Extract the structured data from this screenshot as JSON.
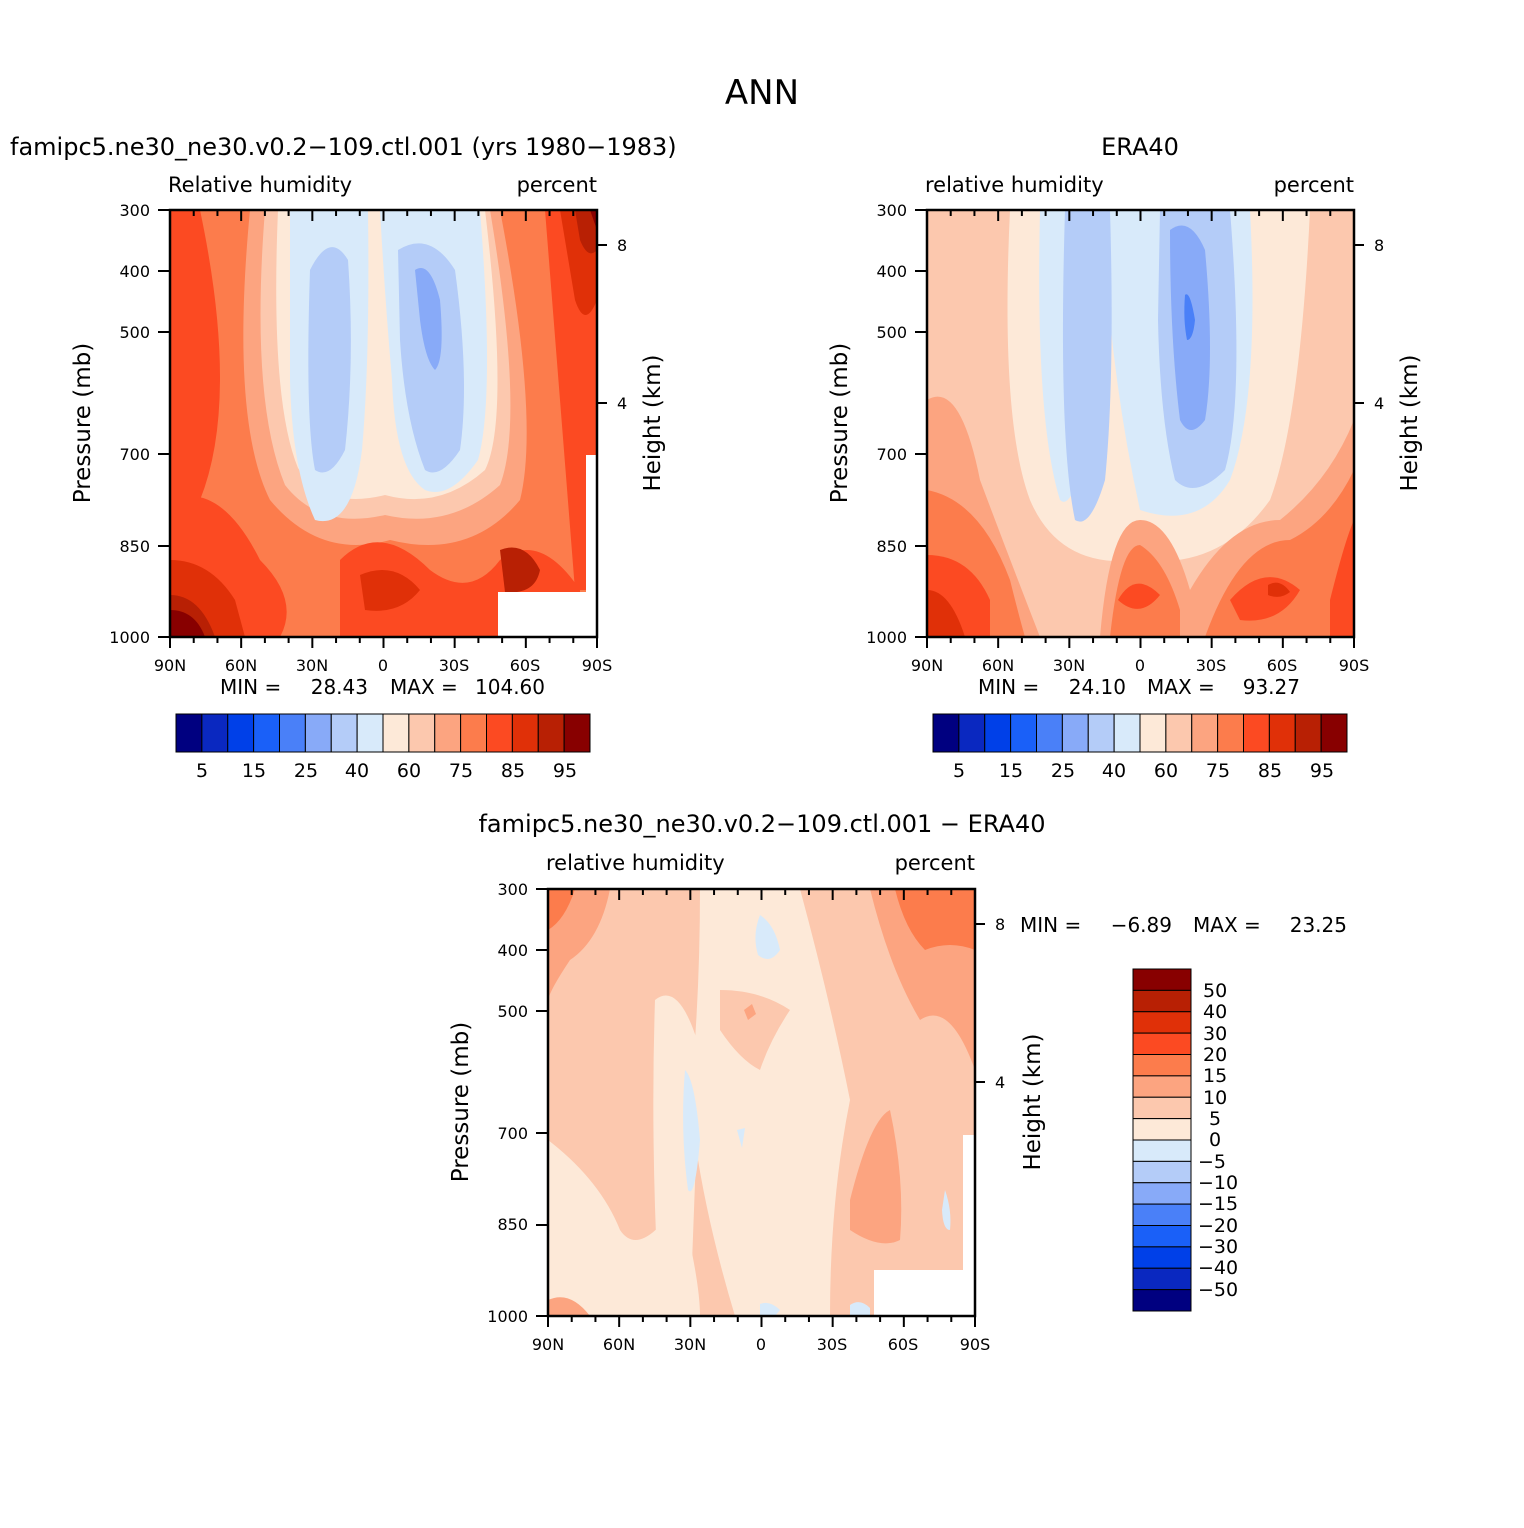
{
  "page": {
    "main_title": "ANN"
  },
  "chart_data": [
    {
      "type": "heatmap",
      "id": "p1",
      "title": "famipc5.ne30_ne30.v0.2−109.ctl.001 (yrs 1980−1983)",
      "left_label": "Relative humidity",
      "right_label": "percent",
      "xlabel": "",
      "ylabel": "Pressure (mb)",
      "y2label": "Height (km)",
      "x_ticks": [
        "90N",
        "60N",
        "30N",
        "0",
        "30S",
        "60S",
        "90S"
      ],
      "y_ticks": [
        "300",
        "400",
        "500",
        "700",
        "850",
        "1000"
      ],
      "y_tick_values": [
        300,
        400,
        500,
        700,
        850,
        1000
      ],
      "y2_ticks": [
        "8",
        "4"
      ],
      "ylim": [
        1000,
        300
      ],
      "min_label": "MIN =",
      "min_value": "28.43",
      "max_label": "MAX =",
      "max_value": "104.60",
      "colorbar_labels": [
        "5",
        "15",
        "25",
        "40",
        "60",
        "75",
        "85",
        "95"
      ],
      "colorbar_levels": [
        5,
        10,
        15,
        20,
        25,
        30,
        40,
        50,
        60,
        70,
        75,
        80,
        85,
        90,
        95
      ],
      "colors": [
        "#000080",
        "#0a28c0",
        "#0040e8",
        "#1a60f8",
        "#4a80f8",
        "#88aaf8",
        "#b4ccf8",
        "#d8eafa",
        "#fde9d8",
        "#fcc8ae",
        "#fca480",
        "#fc7c4c",
        "#fc4a22",
        "#e03008",
        "#b82004",
        "#880000"
      ]
    },
    {
      "type": "heatmap",
      "id": "p2",
      "title": "ERA40",
      "left_label": "relative humidity",
      "right_label": "percent",
      "xlabel": "",
      "ylabel": "Pressure (mb)",
      "y2label": "Height (km)",
      "x_ticks": [
        "90N",
        "60N",
        "30N",
        "0",
        "30S",
        "60S",
        "90S"
      ],
      "y_ticks": [
        "300",
        "400",
        "500",
        "700",
        "850",
        "1000"
      ],
      "y_tick_values": [
        300,
        400,
        500,
        700,
        850,
        1000
      ],
      "y2_ticks": [
        "8",
        "4"
      ],
      "ylim": [
        1000,
        300
      ],
      "min_label": "MIN =",
      "min_value": "24.10",
      "max_label": "MAX =",
      "max_value": "93.27",
      "colorbar_labels": [
        "5",
        "15",
        "25",
        "40",
        "60",
        "75",
        "85",
        "95"
      ],
      "colorbar_levels": [
        5,
        10,
        15,
        20,
        25,
        30,
        40,
        50,
        60,
        70,
        75,
        80,
        85,
        90,
        95
      ],
      "colors": [
        "#000080",
        "#0a28c0",
        "#0040e8",
        "#1a60f8",
        "#4a80f8",
        "#88aaf8",
        "#b4ccf8",
        "#d8eafa",
        "#fde9d8",
        "#fcc8ae",
        "#fca480",
        "#fc7c4c",
        "#fc4a22",
        "#e03008",
        "#b82004",
        "#880000"
      ]
    },
    {
      "type": "heatmap",
      "id": "p3",
      "title": "famipc5.ne30_ne30.v0.2−109.ctl.001 − ERA40",
      "left_label": "relative humidity",
      "right_label": "percent",
      "xlabel": "",
      "ylabel": "Pressure (mb)",
      "y2label": "Height (km)",
      "x_ticks": [
        "90N",
        "60N",
        "30N",
        "0",
        "30S",
        "60S",
        "90S"
      ],
      "y_ticks": [
        "300",
        "400",
        "500",
        "700",
        "850",
        "1000"
      ],
      "y_tick_values": [
        300,
        400,
        500,
        700,
        850,
        1000
      ],
      "y2_ticks": [
        "8",
        "4"
      ],
      "ylim": [
        1000,
        300
      ],
      "min_label": "MIN =",
      "min_value": "−6.89",
      "max_label": "MAX =",
      "max_value": "23.25",
      "colorbar_labels": [
        "50",
        "40",
        "30",
        "20",
        "15",
        "10",
        "5",
        "0",
        "−5",
        "−10",
        "−15",
        "−20",
        "−30",
        "−40",
        "−50"
      ],
      "colorbar_levels": [
        50,
        40,
        30,
        20,
        15,
        10,
        5,
        0,
        -5,
        -10,
        -15,
        -20,
        -30,
        -40,
        -50
      ],
      "colors": [
        "#880000",
        "#b82004",
        "#e03008",
        "#fc4a22",
        "#fc7c4c",
        "#fca480",
        "#fcc8ae",
        "#fde9d8",
        "#d8eafa",
        "#b4ccf8",
        "#88aaf8",
        "#4a80f8",
        "#1a60f8",
        "#0040e8",
        "#0a28c0",
        "#000080"
      ]
    }
  ]
}
